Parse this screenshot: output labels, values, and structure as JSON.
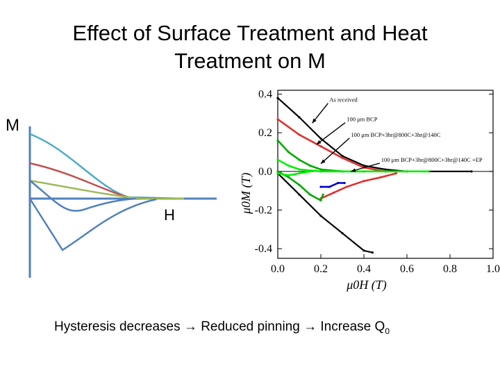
{
  "slide": {
    "title_line1": "Effect of Surface Treatment and Heat",
    "title_line2": "Treatment on M",
    "caption": {
      "part1": "Hysteresis decreases",
      "arrow": "→",
      "part2": "Reduced pinning",
      "part3": "Increase Q",
      "part3_sub": "0"
    }
  },
  "schematic": {
    "y_axis_label": "M",
    "x_axis_label": "H",
    "axis_color": "#4f81bd",
    "curve_colors": [
      "#4bacc6",
      "#c0504d",
      "#9bbb59",
      "#4f81bd",
      "#4f81bd"
    ]
  },
  "chart_data": {
    "type": "line",
    "ylabel": "μ0M (T)",
    "xlabel": "μ0H (T)",
    "xlim": [
      0.0,
      1.0
    ],
    "ylim": [
      -0.45,
      0.42
    ],
    "x_ticks": [
      "0.0",
      "0.2",
      "0.4",
      "0.6",
      "0.8",
      "1.0"
    ],
    "y_ticks": [
      "0.4",
      "0.2",
      "0.0",
      "-0.2",
      "-0.4"
    ],
    "series": [
      {
        "name": "As received",
        "color": "#000000",
        "upper": [
          [
            0.0,
            0.38
          ],
          [
            0.1,
            0.28
          ],
          [
            0.2,
            0.17
          ],
          [
            0.3,
            0.08
          ],
          [
            0.4,
            0.03
          ],
          [
            0.5,
            0.01
          ],
          [
            0.6,
            0.0
          ],
          [
            0.9,
            0.0
          ]
        ],
        "lower": [
          [
            0.0,
            -0.01
          ],
          [
            0.1,
            -0.12
          ],
          [
            0.2,
            -0.23
          ],
          [
            0.3,
            -0.32
          ],
          [
            0.4,
            -0.41
          ],
          [
            0.44,
            -0.42
          ]
        ]
      },
      {
        "name": "100 μm BCP",
        "color": "#e03030",
        "upper": [
          [
            0.0,
            0.27
          ],
          [
            0.1,
            0.19
          ],
          [
            0.2,
            0.13
          ],
          [
            0.3,
            0.07
          ],
          [
            0.4,
            0.02
          ],
          [
            0.5,
            0.0
          ],
          [
            0.6,
            0.0
          ]
        ],
        "lower": [
          [
            0.2,
            -0.14
          ],
          [
            0.26,
            -0.11
          ],
          [
            0.32,
            -0.08
          ],
          [
            0.4,
            -0.05
          ],
          [
            0.48,
            -0.03
          ],
          [
            0.55,
            -0.01
          ]
        ]
      },
      {
        "name": "100 μm BCP+3hr@800C+3hr@140C",
        "color": "#00aa00",
        "upper": [
          [
            0.0,
            0.16
          ],
          [
            0.05,
            0.1
          ],
          [
            0.1,
            0.06
          ],
          [
            0.15,
            0.03
          ],
          [
            0.2,
            0.01
          ],
          [
            0.3,
            0.0
          ],
          [
            0.4,
            0.0
          ]
        ],
        "lower": [
          [
            0.0,
            0.0
          ],
          [
            0.05,
            -0.03
          ],
          [
            0.1,
            -0.07
          ],
          [
            0.15,
            -0.12
          ],
          [
            0.2,
            -0.15
          ],
          [
            0.21,
            -0.12
          ]
        ]
      },
      {
        "name": "100 μm BCP+3hr@800C+3hr@140C +EP",
        "color": "#00ee00",
        "upper": [
          [
            0.0,
            0.06
          ],
          [
            0.05,
            0.03
          ],
          [
            0.1,
            0.01
          ],
          [
            0.2,
            0.0
          ],
          [
            0.4,
            0.0
          ],
          [
            0.6,
            0.0
          ],
          [
            0.7,
            0.0
          ]
        ],
        "lower": [
          [
            0.0,
            -0.01
          ],
          [
            0.05,
            -0.02
          ],
          [
            0.1,
            -0.01
          ],
          [
            0.15,
            0.0
          ]
        ]
      },
      {
        "name": "",
        "color": "#0000cc",
        "upper": [
          [
            0.2,
            -0.08
          ],
          [
            0.24,
            -0.08
          ],
          [
            0.28,
            -0.06
          ],
          [
            0.31,
            -0.06
          ]
        ],
        "lower": []
      }
    ],
    "annotations": [
      {
        "text": "As received",
        "at": [
          0.24,
          0.36
        ],
        "arrow_to": [
          0.16,
          0.25
        ]
      },
      {
        "text": "100 μm BCP",
        "at": [
          0.32,
          0.26
        ],
        "arrow_to": [
          0.18,
          0.14
        ]
      },
      {
        "text": "100 μm BCP+3hr@800C+3hr@140C",
        "at": [
          0.34,
          0.18
        ],
        "arrow_to": [
          0.2,
          0.04
        ]
      },
      {
        "text": "100 μm BCP+3hr@800C+3hr@140C +EP",
        "at": [
          0.48,
          0.05
        ],
        "arrow_to": [
          0.34,
          0.0
        ]
      }
    ]
  }
}
